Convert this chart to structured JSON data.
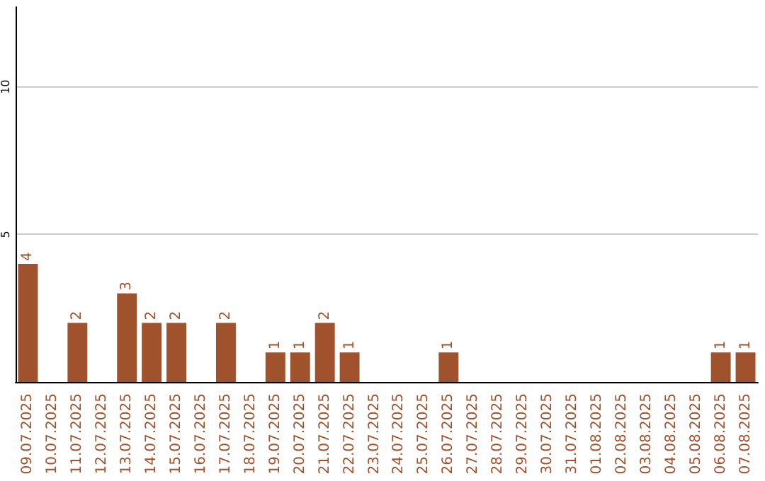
{
  "chart_data": {
    "type": "bar",
    "categories": [
      "09.07.2025",
      "10.07.2025",
      "11.07.2025",
      "12.07.2025",
      "13.07.2025",
      "14.07.2025",
      "15.07.2025",
      "16.07.2025",
      "17.07.2025",
      "18.07.2025",
      "19.07.2025",
      "20.07.2025",
      "21.07.2025",
      "22.07.2025",
      "23.07.2025",
      "24.07.2025",
      "25.07.2025",
      "26.07.2025",
      "27.07.2025",
      "28.07.2025",
      "29.07.2025",
      "30.07.2025",
      "31.07.2025",
      "01.08.2025",
      "02.08.2025",
      "03.08.2025",
      "04.08.2025",
      "05.08.2025",
      "06.08.2025",
      "07.08.2025"
    ],
    "values": [
      4,
      0,
      2,
      0,
      3,
      2,
      2,
      0,
      2,
      0,
      1,
      1,
      2,
      1,
      0,
      0,
      0,
      1,
      0,
      0,
      0,
      0,
      0,
      0,
      0,
      0,
      0,
      0,
      1,
      1
    ],
    "value_labels": [
      "4",
      null,
      "2",
      null,
      "3",
      "2",
      "2",
      null,
      "2",
      null,
      "1",
      "1",
      "2",
      "1",
      null,
      null,
      null,
      "1",
      null,
      null,
      null,
      null,
      null,
      null,
      null,
      null,
      null,
      null,
      "1",
      "1"
    ],
    "color": "#a0522d",
    "ylim": [
      0,
      12.7
    ],
    "yticks": [
      5,
      10
    ],
    "grid": "y"
  }
}
